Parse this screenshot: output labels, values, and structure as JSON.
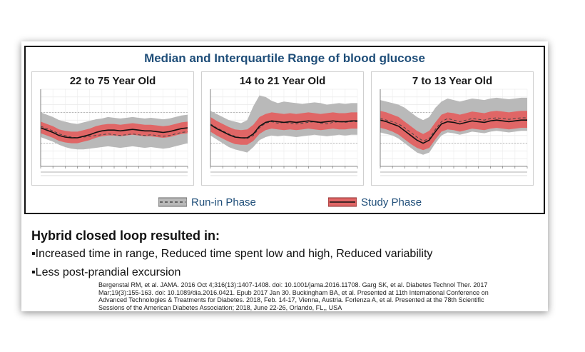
{
  "figure_title": "Median and Interquartile Range of blood glucose",
  "chart_data": [
    {
      "type": "area",
      "title": "22 to 75 Year Old",
      "x": [
        0,
        1,
        2,
        3,
        4,
        5,
        6,
        7,
        8,
        9,
        10,
        11,
        12,
        13,
        14,
        15,
        16,
        17,
        18,
        19,
        20,
        21,
        22,
        23,
        24
      ],
      "series": [
        {
          "name": "Run-in Phase",
          "median": [
            0.52,
            0.49,
            0.46,
            0.42,
            0.4,
            0.38,
            0.37,
            0.38,
            0.39,
            0.4,
            0.41,
            0.42,
            0.41,
            0.4,
            0.41,
            0.42,
            0.41,
            0.4,
            0.41,
            0.4,
            0.39,
            0.4,
            0.42,
            0.44,
            0.45
          ],
          "q1": [
            0.38,
            0.35,
            0.32,
            0.28,
            0.25,
            0.23,
            0.22,
            0.22,
            0.23,
            0.24,
            0.25,
            0.26,
            0.25,
            0.24,
            0.25,
            0.26,
            0.25,
            0.24,
            0.25,
            0.24,
            0.23,
            0.24,
            0.26,
            0.28,
            0.3
          ],
          "q3": [
            0.7,
            0.67,
            0.64,
            0.6,
            0.58,
            0.56,
            0.55,
            0.57,
            0.59,
            0.61,
            0.62,
            0.64,
            0.63,
            0.62,
            0.63,
            0.64,
            0.63,
            0.62,
            0.63,
            0.62,
            0.61,
            0.62,
            0.64,
            0.66,
            0.67
          ]
        },
        {
          "name": "Study Phase",
          "median": [
            0.5,
            0.47,
            0.44,
            0.4,
            0.38,
            0.37,
            0.37,
            0.39,
            0.41,
            0.44,
            0.46,
            0.47,
            0.47,
            0.46,
            0.47,
            0.48,
            0.47,
            0.46,
            0.46,
            0.45,
            0.44,
            0.45,
            0.47,
            0.49,
            0.5
          ],
          "q1": [
            0.43,
            0.4,
            0.37,
            0.33,
            0.31,
            0.3,
            0.3,
            0.32,
            0.34,
            0.37,
            0.39,
            0.4,
            0.4,
            0.39,
            0.4,
            0.41,
            0.4,
            0.39,
            0.39,
            0.38,
            0.37,
            0.38,
            0.4,
            0.42,
            0.43
          ],
          "q3": [
            0.58,
            0.55,
            0.52,
            0.48,
            0.46,
            0.45,
            0.45,
            0.47,
            0.49,
            0.52,
            0.54,
            0.55,
            0.55,
            0.54,
            0.55,
            0.56,
            0.55,
            0.54,
            0.54,
            0.53,
            0.52,
            0.53,
            0.55,
            0.57,
            0.58
          ]
        }
      ]
    },
    {
      "type": "area",
      "title": "14 to 21 Year Old",
      "x": [
        0,
        1,
        2,
        3,
        4,
        5,
        6,
        7,
        8,
        9,
        10,
        11,
        12,
        13,
        14,
        15,
        16,
        17,
        18,
        19,
        20,
        21,
        22,
        23,
        24
      ],
      "series": [
        {
          "name": "Run-in Phase",
          "median": [
            0.55,
            0.5,
            0.46,
            0.42,
            0.39,
            0.37,
            0.36,
            0.4,
            0.5,
            0.56,
            0.58,
            0.56,
            0.57,
            0.56,
            0.55,
            0.56,
            0.57,
            0.58,
            0.56,
            0.55,
            0.57,
            0.58,
            0.57,
            0.58,
            0.58
          ],
          "q1": [
            0.4,
            0.35,
            0.3,
            0.25,
            0.22,
            0.2,
            0.18,
            0.25,
            0.34,
            0.38,
            0.4,
            0.39,
            0.4,
            0.39,
            0.38,
            0.39,
            0.4,
            0.41,
            0.4,
            0.39,
            0.4,
            0.41,
            0.4,
            0.41,
            0.41
          ],
          "q3": [
            0.72,
            0.68,
            0.64,
            0.6,
            0.58,
            0.56,
            0.6,
            0.78,
            0.92,
            0.9,
            0.85,
            0.82,
            0.84,
            0.83,
            0.82,
            0.81,
            0.82,
            0.83,
            0.82,
            0.8,
            0.81,
            0.82,
            0.81,
            0.82,
            0.82
          ]
        },
        {
          "name": "Study Phase",
          "median": [
            0.54,
            0.49,
            0.45,
            0.41,
            0.38,
            0.37,
            0.37,
            0.42,
            0.52,
            0.57,
            0.59,
            0.58,
            0.57,
            0.58,
            0.57,
            0.58,
            0.59,
            0.58,
            0.57,
            0.58,
            0.59,
            0.58,
            0.58,
            0.59,
            0.59
          ],
          "q1": [
            0.45,
            0.4,
            0.36,
            0.32,
            0.29,
            0.28,
            0.28,
            0.33,
            0.42,
            0.47,
            0.49,
            0.48,
            0.47,
            0.48,
            0.47,
            0.48,
            0.49,
            0.48,
            0.47,
            0.48,
            0.49,
            0.48,
            0.48,
            0.49,
            0.49
          ],
          "q3": [
            0.64,
            0.59,
            0.55,
            0.51,
            0.48,
            0.47,
            0.48,
            0.54,
            0.64,
            0.68,
            0.7,
            0.69,
            0.68,
            0.69,
            0.68,
            0.69,
            0.7,
            0.69,
            0.68,
            0.69,
            0.7,
            0.69,
            0.69,
            0.7,
            0.7
          ]
        }
      ]
    },
    {
      "type": "area",
      "title": "7 to 13 Year Old",
      "x": [
        0,
        1,
        2,
        3,
        4,
        5,
        6,
        7,
        8,
        9,
        10,
        11,
        12,
        13,
        14,
        15,
        16,
        17,
        18,
        19,
        20,
        21,
        22,
        23,
        24
      ],
      "series": [
        {
          "name": "Run-in Phase",
          "median": [
            0.62,
            0.6,
            0.58,
            0.55,
            0.5,
            0.44,
            0.38,
            0.33,
            0.36,
            0.48,
            0.58,
            0.62,
            0.6,
            0.58,
            0.6,
            0.62,
            0.61,
            0.6,
            0.62,
            0.63,
            0.62,
            0.61,
            0.62,
            0.63,
            0.63
          ],
          "q1": [
            0.44,
            0.42,
            0.4,
            0.36,
            0.3,
            0.24,
            0.18,
            0.15,
            0.18,
            0.3,
            0.4,
            0.44,
            0.43,
            0.41,
            0.43,
            0.45,
            0.44,
            0.43,
            0.45,
            0.46,
            0.45,
            0.44,
            0.45,
            0.46,
            0.46
          ],
          "q3": [
            0.86,
            0.84,
            0.82,
            0.8,
            0.76,
            0.7,
            0.64,
            0.6,
            0.64,
            0.76,
            0.84,
            0.88,
            0.86,
            0.84,
            0.86,
            0.88,
            0.87,
            0.86,
            0.88,
            0.89,
            0.88,
            0.87,
            0.88,
            0.89,
            0.89
          ]
        },
        {
          "name": "Study Phase",
          "median": [
            0.6,
            0.58,
            0.55,
            0.52,
            0.46,
            0.4,
            0.34,
            0.3,
            0.34,
            0.45,
            0.55,
            0.58,
            0.57,
            0.55,
            0.57,
            0.59,
            0.58,
            0.57,
            0.59,
            0.6,
            0.59,
            0.58,
            0.59,
            0.6,
            0.6
          ],
          "q1": [
            0.5,
            0.48,
            0.45,
            0.41,
            0.35,
            0.29,
            0.24,
            0.21,
            0.24,
            0.35,
            0.45,
            0.48,
            0.47,
            0.45,
            0.47,
            0.49,
            0.48,
            0.47,
            0.49,
            0.5,
            0.49,
            0.48,
            0.49,
            0.5,
            0.5
          ],
          "q3": [
            0.72,
            0.7,
            0.67,
            0.64,
            0.58,
            0.52,
            0.46,
            0.42,
            0.46,
            0.57,
            0.67,
            0.7,
            0.69,
            0.67,
            0.69,
            0.71,
            0.7,
            0.69,
            0.71,
            0.72,
            0.71,
            0.7,
            0.71,
            0.72,
            0.72
          ]
        }
      ]
    }
  ],
  "legend": {
    "run_in": "Run-in Phase",
    "study": "Study Phase"
  },
  "colors": {
    "title": "#1f4e79",
    "run_in_fill": "#b9b9b9",
    "study_fill": "#e06666",
    "median_line": "#111111",
    "border": "#111111"
  },
  "heading": "Hybrid closed loop resulted in:",
  "bullets": [
    "▪Increased time in range, Reduced time spent low and high, Reduced variability",
    "▪Less post-prandial excursion"
  ],
  "references": "Bergenstal RM, et al. JAMA. 2016 Oct 4;316(13):1407-1408. doi: 10.1001/jama.2016.11708. Garg SK, et al. Diabetes Technol Ther. 2017 Mar;19(3):155-163. doi: 10.1089/dia.2016.0421. Epub 2017 Jan 30. Buckingham BA, et al. Presented at 11th International Conference on Advanced Technologies & Treatments for Diabetes. 2018, Feb. 14-17, Vienna, Austria. Forlenza A, et al. Presented at the 78th Scientific Sessions of the American Diabetes Association; 2018, June 22-26, Orlando, FL,, USA"
}
